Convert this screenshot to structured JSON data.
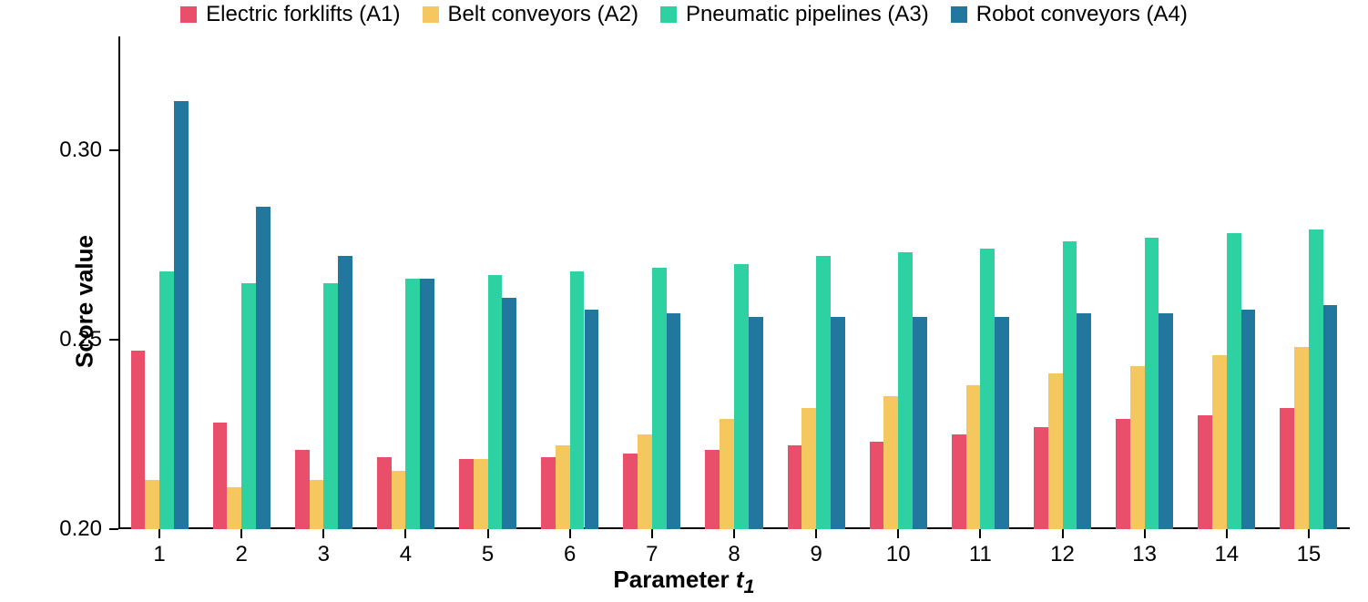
{
  "chart": {
    "type": "bar_grouped",
    "background_color": "#ffffff",
    "axis_color": "#000000",
    "ylabel": "Score value",
    "xlabel_prefix": "Parameter ",
    "xlabel_var": "t",
    "xlabel_sub": "1",
    "label_fontsize": 26,
    "tick_fontsize": 24,
    "legend_fontsize": 24,
    "ylim": [
      0.2,
      0.33
    ],
    "yticks": [
      0.2,
      0.25,
      0.3
    ],
    "categories": [
      "1",
      "2",
      "3",
      "4",
      "5",
      "6",
      "7",
      "8",
      "9",
      "10",
      "11",
      "12",
      "13",
      "14",
      "15"
    ],
    "bar_group_width_rel": 0.7,
    "series": [
      {
        "name": "Electric forklifts (A1)",
        "color": "#e94f6b",
        "values": [
          0.247,
          0.228,
          0.221,
          0.219,
          0.2185,
          0.219,
          0.22,
          0.221,
          0.222,
          0.223,
          0.225,
          0.227,
          0.229,
          0.23,
          0.232
        ]
      },
      {
        "name": "Belt conveyors (A2)",
        "color": "#f5c85f",
        "values": [
          0.213,
          0.211,
          0.213,
          0.2155,
          0.2185,
          0.222,
          0.225,
          0.229,
          0.232,
          0.235,
          0.238,
          0.241,
          0.243,
          0.246,
          0.248
        ]
      },
      {
        "name": "Pneumatic pipelines (A3)",
        "color": "#2ed1a2",
        "values": [
          0.268,
          0.265,
          0.265,
          0.266,
          0.267,
          0.268,
          0.269,
          0.27,
          0.272,
          0.273,
          0.274,
          0.276,
          0.277,
          0.278,
          0.279
        ]
      },
      {
        "name": "Robot conveyors (A4)",
        "color": "#22779e",
        "values": [
          0.313,
          0.285,
          0.272,
          0.266,
          0.261,
          0.258,
          0.257,
          0.256,
          0.256,
          0.256,
          0.256,
          0.257,
          0.257,
          0.258,
          0.259
        ]
      }
    ]
  }
}
